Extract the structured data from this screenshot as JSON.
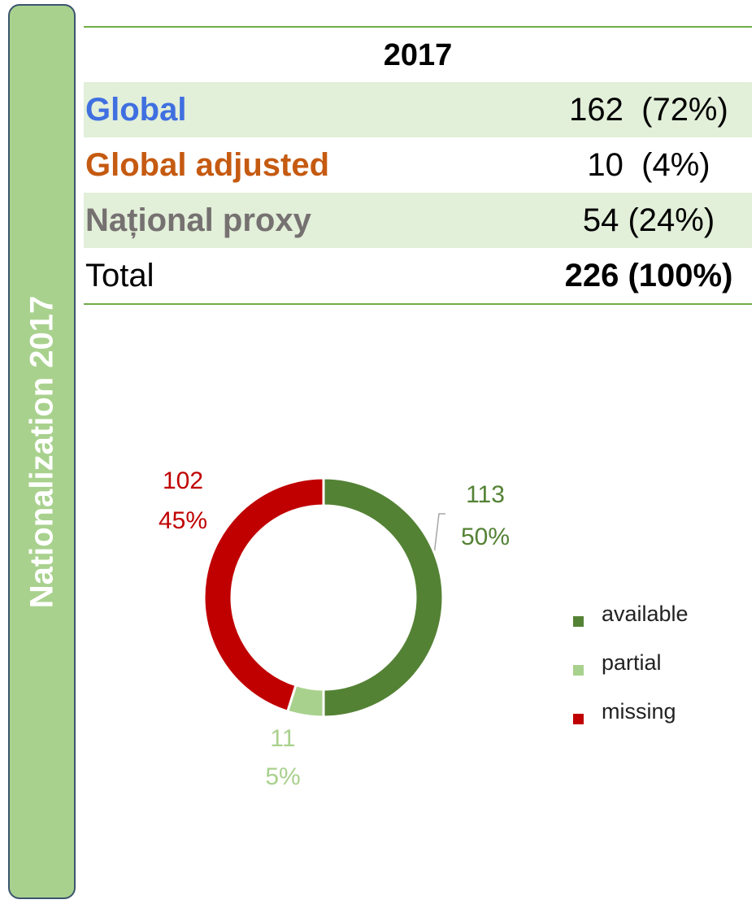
{
  "side_label": "Nationalization 2017",
  "table": {
    "header": "2017",
    "rows": [
      {
        "label": "Global",
        "value": "162  (72%)"
      },
      {
        "label": "Global adjusted",
        "value": "10  (4%)"
      },
      {
        "label": "Național proxy",
        "value": "54 (24%)"
      },
      {
        "label": "Total",
        "value": "226 (100%)"
      }
    ]
  },
  "chart_data": {
    "type": "donut",
    "categories": [
      "available",
      "partial",
      "missing"
    ],
    "values": [
      113,
      11,
      102
    ],
    "percent_labels": [
      "50%",
      "5%",
      "45%"
    ],
    "colors": [
      "#548235",
      "#a9d18e",
      "#c00000"
    ],
    "legend": "right"
  }
}
